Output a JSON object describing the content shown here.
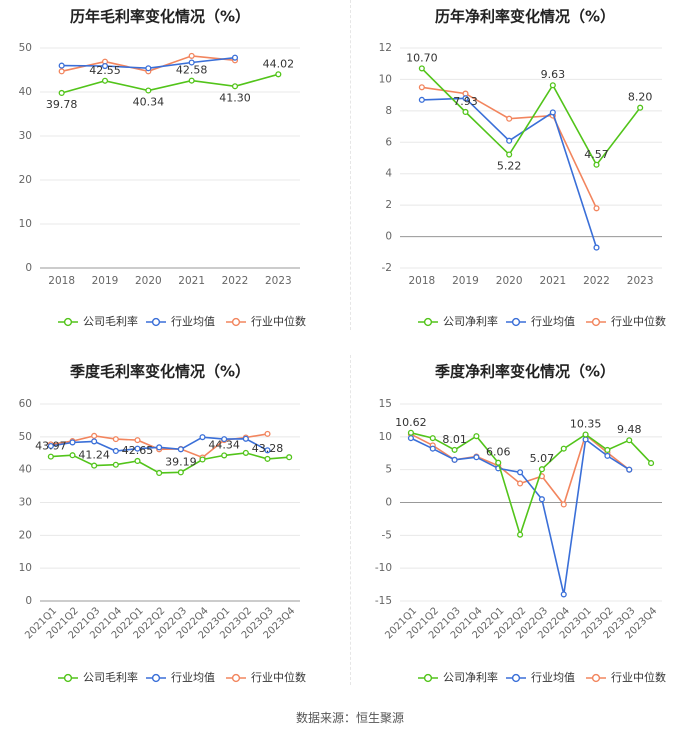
{
  "source": "数据来源：恒生聚源",
  "legend_labels": [
    "行业均值",
    "行业中位数"
  ],
  "colors": {
    "company": "#52c41a",
    "mean": "#3a6fd8",
    "median": "#f2855e",
    "grid": "#e8e8e8",
    "axis": "#999999",
    "tick": "#666666",
    "title": "#222222"
  },
  "chart_data": [
    {
      "type": "line",
      "title": "历年毛利率变化情况（%）",
      "categories": [
        "2018",
        "2019",
        "2020",
        "2021",
        "2022",
        "2023"
      ],
      "ylim": [
        0,
        50
      ],
      "yticks": [
        0,
        10,
        20,
        30,
        40,
        50
      ],
      "series": [
        {
          "name": "公司毛利率",
          "values": [
            39.78,
            42.55,
            40.34,
            42.58,
            41.3,
            44.02
          ],
          "labels": [
            "39.78",
            "42.55",
            "40.34",
            "42.58",
            "41.30",
            "44.02"
          ]
        },
        {
          "name": "行业均值",
          "values": [
            46.0,
            45.9,
            45.4,
            46.7,
            47.8,
            null
          ]
        },
        {
          "name": "行业中位数",
          "values": [
            44.7,
            46.9,
            44.7,
            48.2,
            47.2,
            null
          ]
        }
      ]
    },
    {
      "type": "line",
      "title": "历年净利率变化情况（%）",
      "categories": [
        "2018",
        "2019",
        "2020",
        "2021",
        "2022",
        "2023"
      ],
      "ylim": [
        -2,
        12
      ],
      "yticks": [
        -2,
        0,
        2,
        4,
        6,
        8,
        10,
        12
      ],
      "series": [
        {
          "name": "公司净利率",
          "values": [
            10.7,
            7.93,
            5.22,
            9.63,
            4.57,
            8.2
          ],
          "labels": [
            "10.70",
            "7.93",
            "5.22",
            "9.63",
            "4.57",
            "8.20"
          ]
        },
        {
          "name": "行业均值",
          "values": [
            8.7,
            8.8,
            6.1,
            7.9,
            -0.7,
            null
          ]
        },
        {
          "name": "行业中位数",
          "values": [
            9.5,
            9.1,
            7.5,
            7.7,
            1.8,
            null
          ]
        }
      ]
    },
    {
      "type": "line",
      "title": "季度毛利率变化情况（%）",
      "categories": [
        "2021Q1",
        "2021Q2",
        "2021Q3",
        "2021Q4",
        "2022Q1",
        "2022Q2",
        "2022Q3",
        "2022Q4",
        "2023Q1",
        "2023Q2",
        "2023Q3",
        "2023Q4"
      ],
      "ylim": [
        0,
        60
      ],
      "yticks": [
        0,
        10,
        20,
        30,
        40,
        50,
        60
      ],
      "series": [
        {
          "name": "公司毛利率",
          "values": [
            43.97,
            44.4,
            41.24,
            41.5,
            42.65,
            39.0,
            39.19,
            43.1,
            44.34,
            45.1,
            43.28,
            43.8
          ],
          "labels": [
            "43.97",
            "",
            "41.24",
            "",
            "42.65",
            "",
            "39.19",
            "",
            "44.34",
            "",
            "43.28",
            ""
          ]
        },
        {
          "name": "行业均值",
          "values": [
            47.2,
            48.3,
            48.6,
            45.7,
            46.4,
            46.8,
            46.2,
            49.9,
            49.3,
            49.4,
            45.9,
            null
          ]
        },
        {
          "name": "行业中位数",
          "values": [
            47.7,
            48.7,
            50.3,
            49.3,
            49.0,
            46.2,
            46.3,
            43.7,
            49.0,
            49.8,
            50.9,
            null
          ]
        }
      ]
    },
    {
      "type": "line",
      "title": "季度净利率变化情况（%）",
      "categories": [
        "2021Q1",
        "2021Q2",
        "2021Q3",
        "2021Q4",
        "2022Q1",
        "2022Q2",
        "2022Q3",
        "2022Q4",
        "2023Q1",
        "2023Q2",
        "2023Q3",
        "2023Q4"
      ],
      "ylim": [
        -15,
        15
      ],
      "yticks": [
        -15,
        -10,
        -5,
        0,
        5,
        10,
        15
      ],
      "series": [
        {
          "name": "公司净利率",
          "values": [
            10.62,
            9.8,
            8.01,
            10.1,
            6.06,
            -4.9,
            5.07,
            8.2,
            10.35,
            8.0,
            9.48,
            6.0
          ],
          "labels": [
            "10.62",
            "",
            "8.01",
            "",
            "6.06",
            "",
            "5.07",
            "",
            "10.35",
            "",
            "9.48",
            ""
          ]
        },
        {
          "name": "行业均值",
          "values": [
            9.8,
            8.2,
            6.5,
            6.9,
            5.2,
            4.6,
            0.5,
            -14.0,
            9.6,
            7.1,
            5.0,
            null
          ]
        },
        {
          "name": "行业中位数",
          "values": [
            10.4,
            8.7,
            6.5,
            7.0,
            5.6,
            2.9,
            4.0,
            -0.3,
            10.3,
            7.6,
            5.0,
            null
          ]
        }
      ]
    }
  ]
}
